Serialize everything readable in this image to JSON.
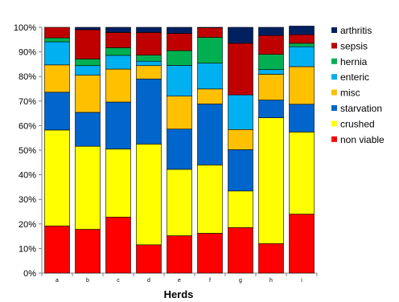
{
  "chart_data": {
    "type": "bar",
    "stacked": true,
    "percent": true,
    "xlabel": "Herds",
    "ylabel": "",
    "ylim": [
      0,
      100
    ],
    "yticks": [
      "0%",
      "10%",
      "20%",
      "30%",
      "40%",
      "50%",
      "60%",
      "70%",
      "80%",
      "90%",
      "100%"
    ],
    "categories": [
      "a",
      "b",
      "c",
      "d",
      "e",
      "f",
      "g",
      "h",
      "i"
    ],
    "legend_position": "right",
    "series": [
      {
        "name": "non viable",
        "color": "#ff0000",
        "values": [
          19.2,
          17.8,
          22.8,
          11.5,
          15.2,
          16.2,
          18.5,
          12.0,
          24.0
        ]
      },
      {
        "name": "crushed",
        "color": "#ffff00",
        "values": [
          39.0,
          33.8,
          27.7,
          41.0,
          27.0,
          27.8,
          14.9,
          51.2,
          33.4
        ]
      },
      {
        "name": "starvation",
        "color": "#0066cc",
        "values": [
          15.4,
          13.8,
          19.1,
          26.5,
          16.4,
          24.8,
          16.8,
          7.2,
          11.3
        ]
      },
      {
        "name": "misc",
        "color": "#ffc000",
        "values": [
          11.1,
          15.1,
          13.4,
          5.4,
          13.4,
          6.1,
          8.2,
          10.5,
          15.3
        ]
      },
      {
        "name": "enteric",
        "color": "#00b0f0",
        "values": [
          9.4,
          3.9,
          5.6,
          1.8,
          12.5,
          10.5,
          14.1,
          1.9,
          8.1
        ]
      },
      {
        "name": "hernia",
        "color": "#00b050",
        "values": [
          1.6,
          2.7,
          3.1,
          2.5,
          6.0,
          10.5,
          0.0,
          6.2,
          1.4
        ]
      },
      {
        "name": "sepsis",
        "color": "#c00000",
        "values": [
          4.3,
          11.9,
          6.2,
          9.2,
          7.0,
          3.9,
          21.0,
          7.7,
          3.5
        ]
      },
      {
        "name": "arthritis",
        "color": "#002060",
        "values": [
          0.0,
          1.0,
          2.1,
          2.1,
          2.5,
          0.2,
          6.5,
          3.3,
          3.5
        ]
      }
    ]
  }
}
